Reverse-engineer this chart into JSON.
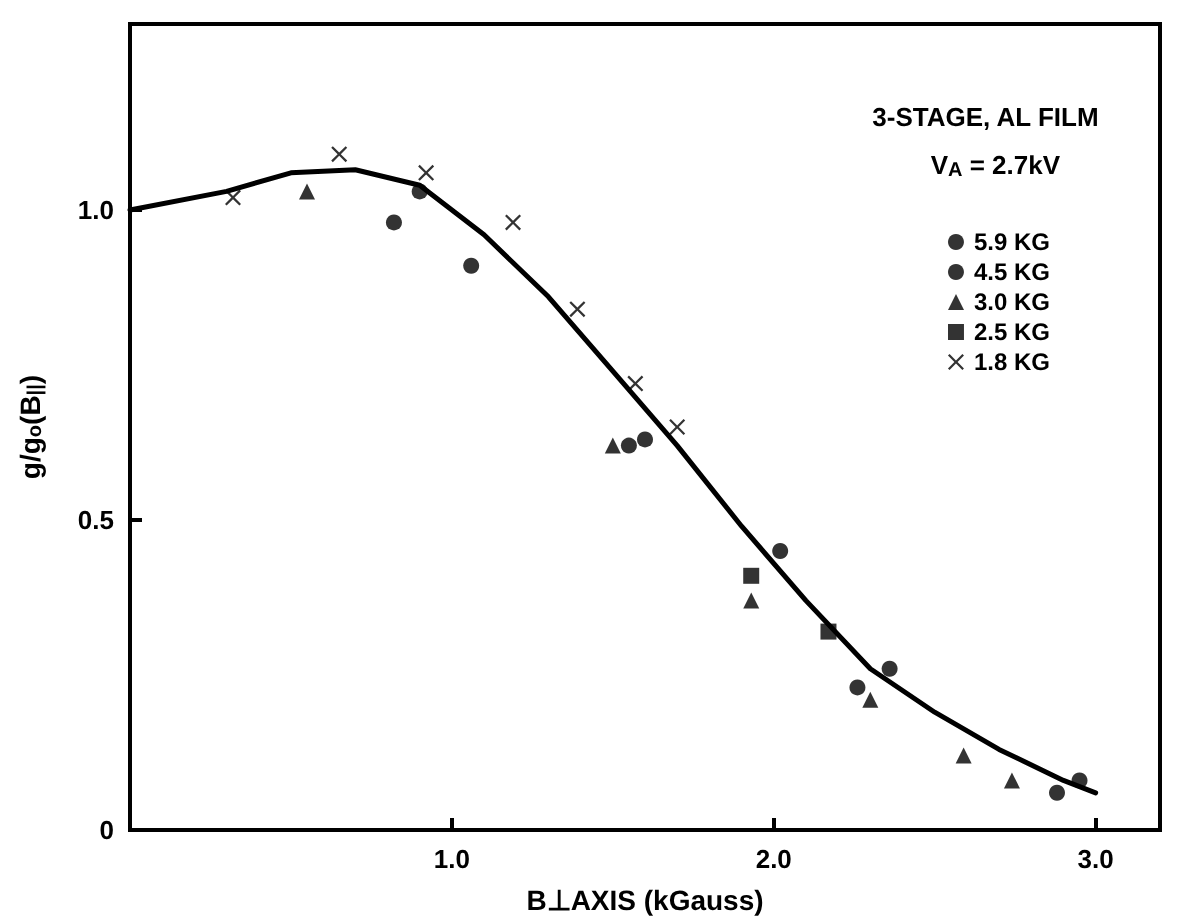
{
  "chart_data": {
    "type": "scatter",
    "xlabel": "B⊥AXIS (kGauss)",
    "ylabel": "g/g$_{o}$(B$_{||}$)",
    "annotations": [
      "3-STAGE, AL FILM",
      "V$_{A}$ = 2.7kV"
    ],
    "xlim": [
      0,
      3.2
    ],
    "ylim": [
      0,
      1.3
    ],
    "xticks": [
      {
        "value": 1,
        "label": "1.0"
      },
      {
        "value": 2,
        "label": "2.0"
      },
      {
        "value": 3,
        "label": "3.0"
      }
    ],
    "yticks": [
      0,
      0.5,
      {
        "value": 1,
        "label": "1.0"
      }
    ],
    "grid": false,
    "legend": "top right",
    "series": [
      {
        "name": "5.9 KG",
        "color": "#000000",
        "marker": "circle",
        "x": [
          0.82,
          1.06,
          2.26,
          2.36,
          2.88
        ],
        "values": [
          0.98,
          0.91,
          0.23,
          0.26,
          0.06
        ]
      },
      {
        "name": "4.5 KG",
        "color": "#000000",
        "marker": "circle",
        "x": [
          0.9,
          1.55,
          1.6,
          2.02,
          2.95
        ],
        "values": [
          1.03,
          0.62,
          0.63,
          0.45,
          0.08
        ]
      },
      {
        "name": "3.0 KG",
        "color": "#000000",
        "marker": "triangle",
        "x": [
          0.55,
          1.5,
          1.93,
          2.3,
          2.59,
          2.74
        ],
        "values": [
          1.03,
          0.62,
          0.37,
          0.21,
          0.12,
          0.08
        ]
      },
      {
        "name": "2.5 KG",
        "color": "#000000",
        "marker": "square",
        "x": [
          1.93,
          2.17
        ],
        "values": [
          0.41,
          0.32
        ]
      },
      {
        "name": "1.8 KG",
        "color": "#000000",
        "marker": "cross",
        "x": [
          0.32,
          0.65,
          0.92,
          1.19,
          1.39,
          1.57,
          1.7
        ],
        "values": [
          1.02,
          1.09,
          1.06,
          0.98,
          0.84,
          0.72,
          0.65
        ]
      },
      {
        "type": "line",
        "color": "#000000",
        "marker": "none",
        "line_style": "solid",
        "x": [
          0,
          0.3,
          0.5,
          0.7,
          0.9,
          1.1,
          1.3,
          1.5,
          1.7,
          1.9,
          2.1,
          2.3,
          2.5,
          2.7,
          2.9,
          3.0
        ],
        "values": [
          1.0,
          1.03,
          1.06,
          1.065,
          1.04,
          0.96,
          0.86,
          0.74,
          0.62,
          0.49,
          0.37,
          0.26,
          0.19,
          0.13,
          0.08,
          0.06
        ]
      }
    ]
  }
}
